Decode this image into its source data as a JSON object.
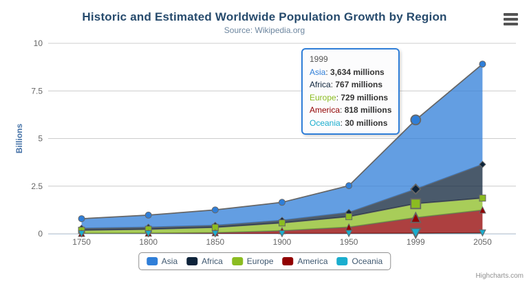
{
  "title": "Historic and Estimated Worldwide Population Growth by Region",
  "subtitle": "Source: Wikipedia.org",
  "credits": "Highcharts.com",
  "export_icon": "hamburger-icon",
  "yaxis": {
    "title": "Billions",
    "tick_labels": [
      "0",
      "2.5",
      "5",
      "7.5",
      "10"
    ],
    "tick_values": [
      0,
      2.5,
      5,
      7.5,
      10
    ]
  },
  "xaxis": {
    "categories": [
      "1750",
      "1800",
      "1850",
      "1900",
      "1950",
      "1999",
      "2050"
    ]
  },
  "chart_data": {
    "type": "area",
    "stacking": "normal",
    "unit": "millions",
    "title": "Historic and Estimated Worldwide Population Growth by Region",
    "subtitle": "Source: Wikipedia.org",
    "ylabel": "Billions",
    "xlabel": "",
    "ylim_billions": [
      0,
      10
    ],
    "grid": true,
    "legend_position": "bottom",
    "line_color": "#666666",
    "fill_opacity": 0.75,
    "hover_index": 5,
    "categories": [
      "1750",
      "1800",
      "1850",
      "1900",
      "1950",
      "1999",
      "2050"
    ],
    "series": [
      {
        "name": "Asia",
        "color": "#2f7ed8",
        "marker": "circle",
        "values": [
          502,
          635,
          809,
          947,
          1402,
          3634,
          5268
        ]
      },
      {
        "name": "Africa",
        "color": "#0d233a",
        "marker": "diamond",
        "values": [
          106,
          107,
          111,
          133,
          221,
          767,
          1766
        ]
      },
      {
        "name": "Europe",
        "color": "#8bbc21",
        "marker": "square",
        "values": [
          163,
          203,
          276,
          408,
          547,
          729,
          628
        ]
      },
      {
        "name": "America",
        "color": "#910000",
        "marker": "triangle",
        "values": [
          18,
          31,
          54,
          156,
          339,
          818,
          1201
        ]
      },
      {
        "name": "Oceania",
        "color": "#1aadce",
        "marker": "triangle-down",
        "values": [
          2,
          2,
          2,
          6,
          13,
          30,
          46
        ]
      }
    ],
    "stack_order_bottom_to_top": [
      "Oceania",
      "America",
      "Europe",
      "Africa",
      "Asia"
    ]
  },
  "tooltip": {
    "header": "1999",
    "separator": ": ",
    "rows": [
      {
        "name": "Asia",
        "value": "3,634 millions",
        "color": "#2f7ed8"
      },
      {
        "name": "Africa",
        "value": "767 millions",
        "color": "#0d233a"
      },
      {
        "name": "Europe",
        "value": "729 millions",
        "color": "#8bbc21"
      },
      {
        "name": "America",
        "value": "818 millions",
        "color": "#910000"
      },
      {
        "name": "Oceania",
        "value": "30 millions",
        "color": "#1aadce"
      }
    ]
  },
  "legend": {
    "items": [
      {
        "label": "Asia",
        "color": "#2f7ed8"
      },
      {
        "label": "Africa",
        "color": "#0d233a"
      },
      {
        "label": "Europe",
        "color": "#8bbc21"
      },
      {
        "label": "America",
        "color": "#910000"
      },
      {
        "label": "Oceania",
        "color": "#1aadce"
      }
    ]
  },
  "colors": {
    "title": "#274b6d",
    "subtitle": "#6D869F",
    "axis_label": "#666666",
    "yaxis_title": "#4572A7",
    "gridline": "#CCCCCC",
    "axis_line": "#C0D0E0",
    "legend_border": "#909090",
    "legend_text": "#3E576F",
    "tooltip_border": "#2f7ed8",
    "credits": "#909090"
  }
}
